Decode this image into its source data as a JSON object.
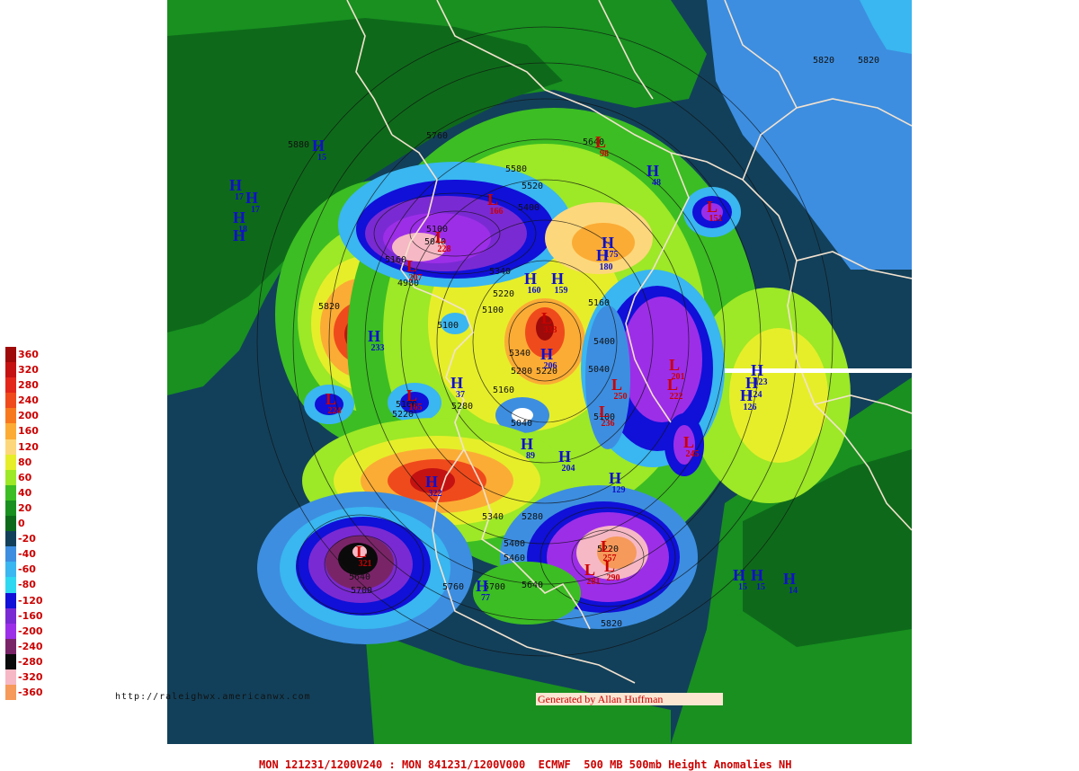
{
  "legend": {
    "items": [
      {
        "label": "360",
        "color": "#9e0a0a"
      },
      {
        "label": "320",
        "color": "#c41212"
      },
      {
        "label": "280",
        "color": "#e2261a"
      },
      {
        "label": "240",
        "color": "#ef4a1c"
      },
      {
        "label": "200",
        "color": "#f7791e"
      },
      {
        "label": "160",
        "color": "#fbac35"
      },
      {
        "label": "120",
        "color": "#fdd77b"
      },
      {
        "label": "80",
        "color": "#e6ee2a"
      },
      {
        "label": "60",
        "color": "#9de827"
      },
      {
        "label": "40",
        "color": "#3cbd23"
      },
      {
        "label": "20",
        "color": "#199020"
      },
      {
        "label": "0",
        "color": "#0e6a1a"
      },
      {
        "label": "-20",
        "color": "#12405a"
      },
      {
        "label": "-40",
        "color": "#3d8ee0"
      },
      {
        "label": "-60",
        "color": "#3ab6f0"
      },
      {
        "label": "-80",
        "color": "#2ed8f0"
      },
      {
        "label": "-120",
        "color": "#1010d8"
      },
      {
        "label": "-160",
        "color": "#7a2ad2"
      },
      {
        "label": "-200",
        "color": "#9c2ee8"
      },
      {
        "label": "-240",
        "color": "#7a2468"
      },
      {
        "label": "-280",
        "color": "#0a0a0a"
      },
      {
        "label": "-320",
        "color": "#f6b8c4"
      },
      {
        "label": "-360",
        "color": "#f59a5a"
      }
    ]
  },
  "url_text": "http://raleighwx.americanwx.com",
  "credit_text": "Generated by Allan Huffman",
  "caption_text": "MON 121231/1200V240 : MON 841231/1200V000  ECMWF  500 MB 500mb Height Anomalies NH",
  "height_labels": [
    "5820",
    "5820",
    "5880",
    "5760",
    "5640",
    "5580",
    "5520",
    "5400",
    "5100",
    "5040",
    "4980",
    "5160",
    "5340",
    "5220",
    "5820",
    "5100",
    "5100",
    "5340",
    "5220",
    "5280",
    "5160",
    "5040",
    "5220",
    "5160",
    "5280",
    "5040",
    "5100",
    "5160",
    "5400",
    "5340",
    "5280",
    "5400",
    "5460",
    "5220",
    "5700",
    "5640",
    "5760",
    "5820",
    "5640",
    "5700"
  ],
  "pressure_centers": [
    {
      "type": "H",
      "value": "15"
    },
    {
      "type": "H",
      "value": "17"
    },
    {
      "type": "H",
      "value": "17"
    },
    {
      "type": "H",
      "value": "18"
    },
    {
      "type": "H",
      "value": ""
    },
    {
      "type": "H",
      "value": "48"
    },
    {
      "type": "H",
      "value": "175"
    },
    {
      "type": "H",
      "value": "180"
    },
    {
      "type": "H",
      "value": "160"
    },
    {
      "type": "H",
      "value": "159"
    },
    {
      "type": "H",
      "value": "233"
    },
    {
      "type": "H",
      "value": "37"
    },
    {
      "type": "H",
      "value": "89"
    },
    {
      "type": "H",
      "value": "204"
    },
    {
      "type": "H",
      "value": "129"
    },
    {
      "type": "H",
      "value": "322"
    },
    {
      "type": "H",
      "value": "123"
    },
    {
      "type": "H",
      "value": "124"
    },
    {
      "type": "H",
      "value": "126"
    },
    {
      "type": "H",
      "value": "77"
    },
    {
      "type": "H",
      "value": "15"
    },
    {
      "type": "H",
      "value": "15"
    },
    {
      "type": "H",
      "value": "14"
    },
    {
      "type": "H",
      "value": "206"
    },
    {
      "type": "L",
      "value": "166"
    },
    {
      "type": "L",
      "value": "228"
    },
    {
      "type": "L",
      "value": "207"
    },
    {
      "type": "L",
      "value": "151"
    },
    {
      "type": "L",
      "value": "98"
    },
    {
      "type": "L",
      "value": "333"
    },
    {
      "type": "L",
      "value": "224"
    },
    {
      "type": "L",
      "value": "165"
    },
    {
      "type": "L",
      "value": "250"
    },
    {
      "type": "L",
      "value": "201"
    },
    {
      "type": "L",
      "value": "222"
    },
    {
      "type": "L",
      "value": "245"
    },
    {
      "type": "L",
      "value": "236"
    },
    {
      "type": "L",
      "value": "321"
    },
    {
      "type": "L",
      "value": "257"
    },
    {
      "type": "L",
      "value": "290"
    },
    {
      "type": "L",
      "value": "281"
    }
  ]
}
